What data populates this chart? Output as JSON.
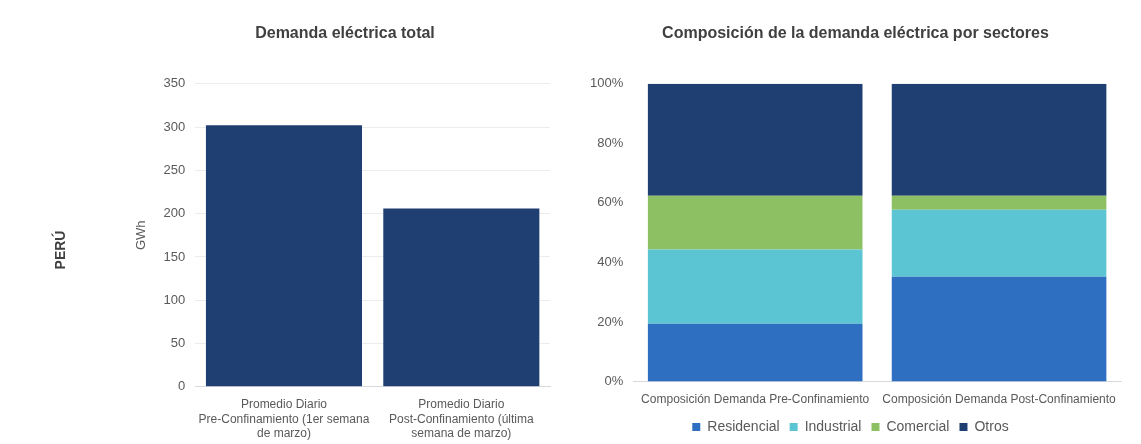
{
  "chart_data": [
    {
      "type": "bar",
      "title": "Demanda eléctrica total",
      "ylabel": "GWh",
      "categories": [
        "Promedio Diario Pre-Confinamiento (1er semana de marzo)",
        "Promedio Diario Post-Confinamiento (última semana de marzo)"
      ],
      "values": [
        302,
        206
      ],
      "color": "#1f3f73",
      "ylim": [
        0,
        350
      ],
      "yticks": [
        0,
        50,
        100,
        150,
        200,
        250,
        300,
        350
      ],
      "grid": "y",
      "legend": false,
      "annotations": [
        "PERÚ"
      ]
    },
    {
      "type": "bar",
      "title": "Composición de la demanda eléctrica por sectores",
      "categories": [
        "Composición Demanda Pre-Confinamiento",
        "Composición Demanda Post-Confinamiento"
      ],
      "stacked": true,
      "series": [
        {
          "name": "Residencial",
          "color": "#2e6fc2",
          "values": [
            19.4,
            35.2
          ]
        },
        {
          "name": "Industrial",
          "color": "#5bc5d3",
          "values": [
            25,
            22.5
          ]
        },
        {
          "name": "Comercial",
          "color": "#8cc063",
          "values": [
            18,
            4.7
          ]
        },
        {
          "name": "Otros",
          "color": "#1f3f73",
          "values": [
            37.6,
            37.6
          ]
        }
      ],
      "ylim": [
        0,
        100
      ],
      "yticks": [
        {
          "value": 0,
          "label": "0%"
        },
        {
          "value": 20,
          "label": "20%"
        },
        {
          "value": 40,
          "label": "40%"
        },
        {
          "value": 60,
          "label": "60%"
        },
        {
          "value": 80,
          "label": "80%"
        },
        {
          "value": 100,
          "label": "100%"
        }
      ],
      "grid": false,
      "legend": "bottom"
    }
  ]
}
